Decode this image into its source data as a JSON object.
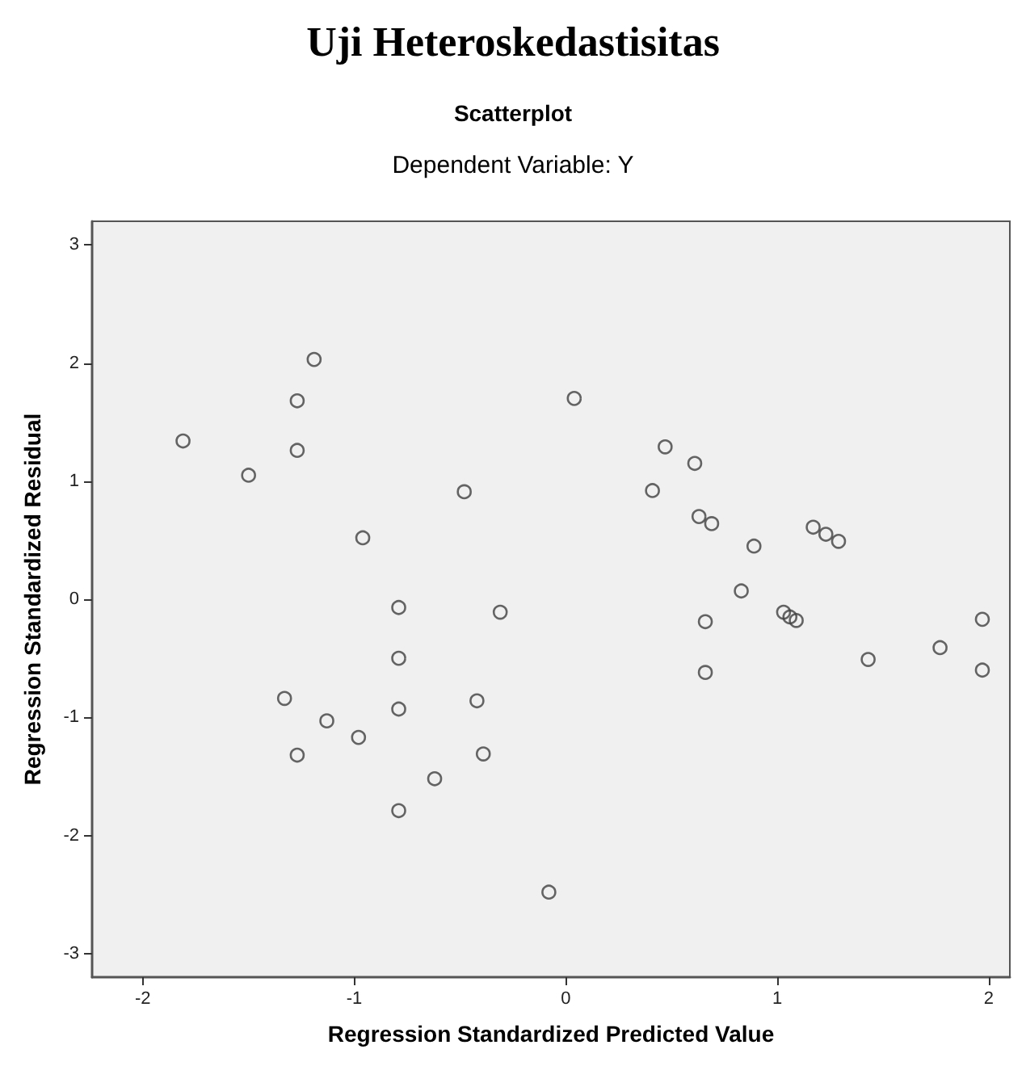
{
  "chart_data": {
    "type": "scatter",
    "title": "Uji Heteroskedastisitas",
    "subtitle": "Scatterplot",
    "annotations": [
      "Dependent Variable: Y"
    ],
    "xlabel": "Regression Standardized Predicted Value",
    "ylabel": "Regression Standardized Residual",
    "x": [
      -1.81,
      -1.5,
      -1.19,
      -1.27,
      -1.27,
      -0.96,
      -0.48,
      -0.31,
      -0.79,
      -0.79,
      -0.79,
      -0.79,
      -1.33,
      -1.13,
      -0.98,
      -1.27,
      -0.62,
      -0.42,
      -0.39,
      0.04,
      -0.08,
      0.47,
      0.61,
      0.41,
      0.63,
      0.69,
      0.89,
      0.83,
      0.66,
      0.66,
      1.17,
      1.23,
      1.29,
      1.03,
      1.06,
      1.09,
      1.43,
      1.77,
      1.97,
      1.97
    ],
    "values": [
      1.34,
      1.05,
      2.03,
      1.68,
      1.26,
      0.52,
      0.91,
      -0.11,
      -0.07,
      -0.5,
      -0.93,
      -1.79,
      -0.84,
      -1.03,
      -1.17,
      -1.32,
      -1.52,
      -0.86,
      -1.31,
      1.7,
      -2.48,
      1.29,
      1.15,
      0.92,
      0.7,
      0.64,
      0.45,
      0.07,
      -0.19,
      -0.62,
      0.61,
      0.55,
      0.49,
      -0.11,
      -0.15,
      -0.18,
      -0.51,
      -0.41,
      -0.17,
      -0.6
    ],
    "color": "#404040",
    "marker": "circle",
    "xlim": [
      -2.24,
      2.1
    ],
    "ylim": [
      -3.2,
      3.2
    ],
    "xticks": [
      -2,
      -1,
      0,
      1,
      2
    ],
    "yticks": [
      -3,
      -2,
      -1,
      0,
      1,
      2,
      3
    ]
  }
}
